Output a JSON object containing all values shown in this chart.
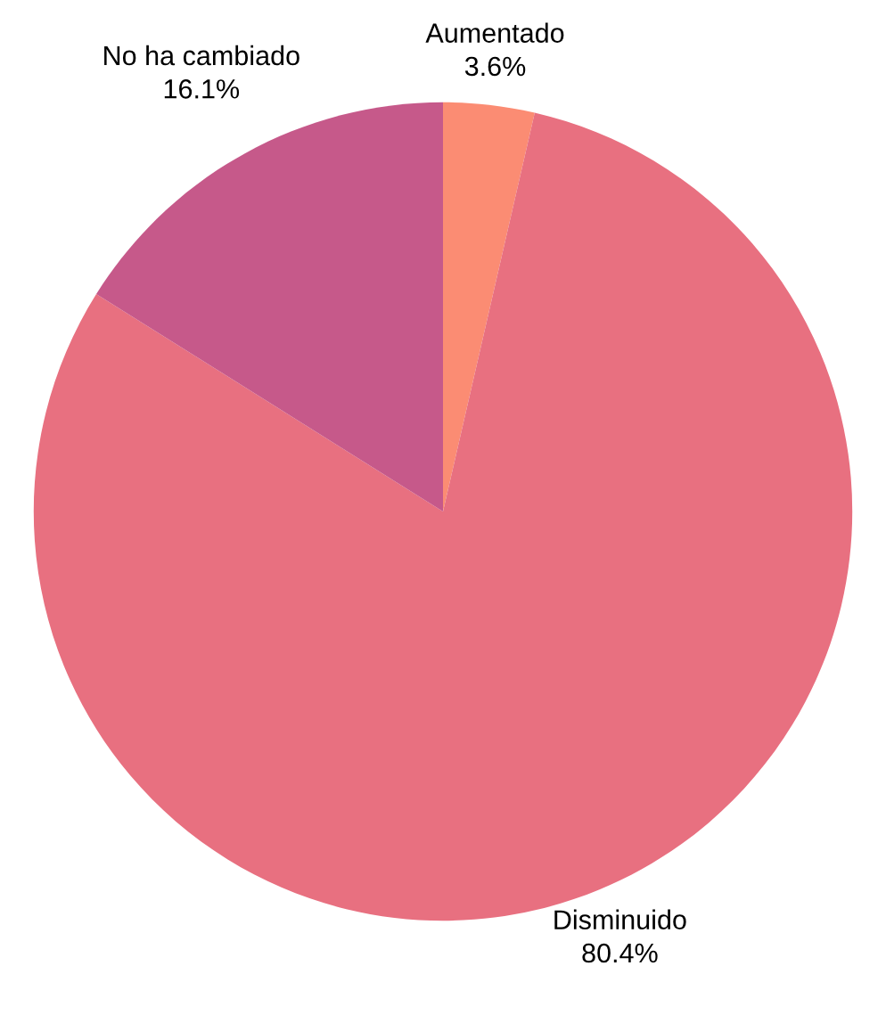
{
  "chart_data": {
    "type": "pie",
    "categories": [
      "Aumentado",
      "Disminuido",
      "No ha cambiado"
    ],
    "values": [
      3.6,
      80.4,
      16.1
    ],
    "value_labels": [
      "3.6%",
      "80.4%",
      "16.1%"
    ],
    "colors": [
      "#fb8c73",
      "#e87080",
      "#c6598a"
    ],
    "legend": false
  }
}
